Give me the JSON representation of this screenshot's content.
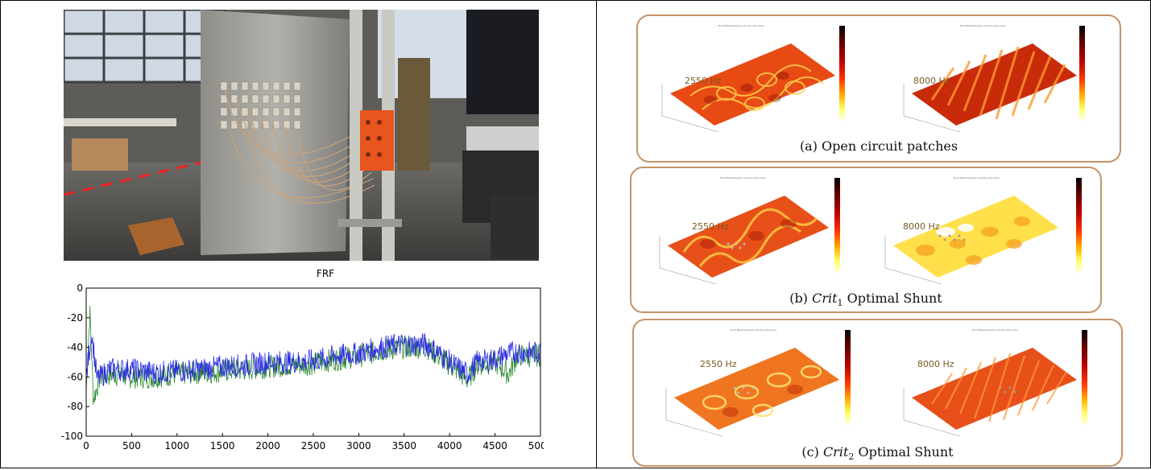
{
  "figure": {
    "frf_chart": {
      "chart_data": {
        "type": "line",
        "title": "FRF",
        "xlabel": "",
        "ylabel": "",
        "xlim": [
          0,
          5000
        ],
        "ylim": [
          -100,
          0
        ],
        "x_ticks": [
          "0",
          "500",
          "1000",
          "1500",
          "2000",
          "2500",
          "3000",
          "3500",
          "4000",
          "4500",
          "5000"
        ],
        "y_ticks": [
          "0",
          "-20",
          "-40",
          "-60",
          "-80",
          "-100"
        ],
        "series": [
          {
            "color": "#2a2ae6",
            "x": [
              0,
              60,
              120,
              250,
              500,
              750,
              1000,
              1250,
              1500,
              1750,
              2000,
              2250,
              2500,
              2750,
              3000,
              3250,
              3500,
              3750,
              3900,
              4050,
              4200,
              4300,
              4500,
              4600,
              4750,
              4900,
              5000
            ],
            "y": [
              -60,
              -30,
              -62,
              -55,
              -55,
              -57,
              -56,
              -55,
              -53,
              -52,
              -50,
              -50,
              -49,
              -46,
              -44,
              -40,
              -38,
              -38,
              -45,
              -52,
              -58,
              -50,
              -48,
              -45,
              -43,
              -44,
              -43
            ]
          },
          {
            "color": "#2e8b2e",
            "x": [
              0,
              40,
              80,
              150,
              300,
              500,
              750,
              1000,
              1250,
              1500,
              1750,
              2000,
              2250,
              2500,
              2750,
              3000,
              3250,
              3500,
              3750,
              3900,
              4050,
              4200,
              4300,
              4500,
              4650,
              4750,
              4900,
              5000
            ],
            "y": [
              -70,
              -15,
              -75,
              -60,
              -58,
              -60,
              -60,
              -58,
              -57,
              -56,
              -55,
              -53,
              -52,
              -51,
              -48,
              -46,
              -42,
              -40,
              -40,
              -47,
              -54,
              -62,
              -52,
              -50,
              -58,
              -45,
              -46,
              -45
            ]
          }
        ]
      }
    },
    "panels": [
      {
        "prefix": "(a) ",
        "crit": "",
        "sub": "",
        "rest": "Open circuit patches",
        "freq_left": "2550 Hz",
        "freq_right": "8000 Hz",
        "mini_title": "Eco3 Beam/Square velocity (Sqr.mdo)"
      },
      {
        "prefix": "(b) ",
        "crit": "Crit",
        "sub": "1",
        "rest": " Optimal Shunt",
        "freq_left": "2550 Hz",
        "freq_right": "8000 Hz",
        "mini_title": "Eco3 Beam/Square velocity (Sqr.mdo)"
      },
      {
        "prefix": "(c) ",
        "crit": "Crit",
        "sub": "2",
        "rest": " Optimal Shunt",
        "freq_left": "2550 Hz",
        "freq_right": "8000 Hz",
        "mini_title": "Eco3 Beam/Square velocity (Sqr.mdo)"
      }
    ]
  }
}
